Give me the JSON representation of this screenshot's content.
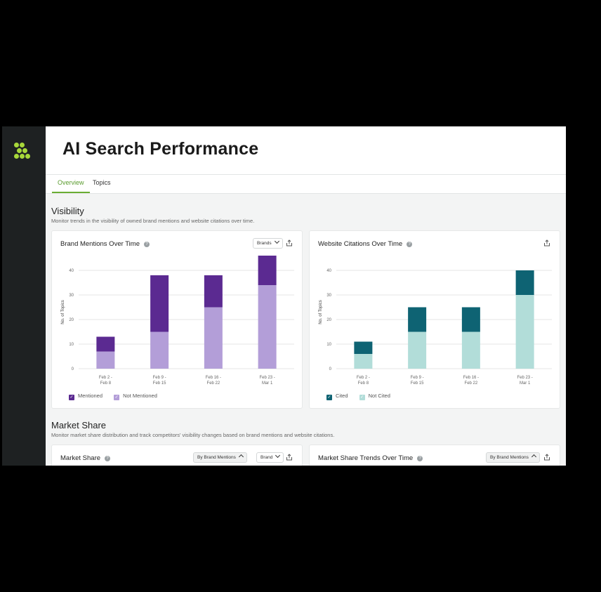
{
  "page": {
    "title": "AI Search Performance"
  },
  "tabs": [
    {
      "label": "Overview",
      "active": true
    },
    {
      "label": "Topics",
      "active": false
    }
  ],
  "visibility": {
    "title": "Visibility",
    "description": "Monitor trends in the visibility of owned brand mentions and website citations over time."
  },
  "brand_card": {
    "title": "Brand Mentions Over Time",
    "dropdown": "Brands",
    "legend": [
      "Mentioned",
      "Not Mentioned"
    ]
  },
  "citations_card": {
    "title": "Website Citations Over Time",
    "legend": [
      "Cited",
      "Not Cited"
    ]
  },
  "market_share": {
    "title": "Market Share",
    "description": "Monitor market share distribution and track competitors' visibility changes based on brand mentions and website citations."
  },
  "market_card": {
    "title": "Market Share",
    "dropdown1": "By Brand Mentions",
    "dropdown2": "Brand"
  },
  "trends_card": {
    "title": "Market Share Trends Over Time",
    "dropdown": "By Brand Mentions"
  },
  "colors": {
    "accent": "#6aad33",
    "mentioned": "#5b2a91",
    "not_mentioned": "#b39ed8",
    "cited": "#0e6373",
    "not_cited": "#b2ddd9"
  },
  "chart_data": [
    {
      "type": "bar",
      "stacked": true,
      "categories": [
        [
          "Feb 2 -",
          "Feb 8"
        ],
        [
          "Feb 9 -",
          "Feb 15"
        ],
        [
          "Feb 16 -",
          "Feb 22"
        ],
        [
          "Feb 23 -",
          "Mar 1"
        ]
      ],
      "series": [
        {
          "name": "Not Mentioned",
          "values": [
            7,
            15,
            25,
            34
          ],
          "color": "#b39ed8"
        },
        {
          "name": "Mentioned",
          "values": [
            6,
            23,
            13,
            12
          ],
          "color": "#5b2a91"
        }
      ],
      "ylabel": "No. of Topics",
      "yticks": [
        0,
        10,
        20,
        30,
        40
      ],
      "ylim": [
        0,
        46
      ],
      "grid": true
    },
    {
      "type": "bar",
      "stacked": true,
      "categories": [
        [
          "Feb 2 -",
          "Feb 8"
        ],
        [
          "Feb 9 -",
          "Feb 15"
        ],
        [
          "Feb 16 -",
          "Feb 22"
        ],
        [
          "Feb 23 -",
          "Mar 1"
        ]
      ],
      "series": [
        {
          "name": "Not Cited",
          "values": [
            6,
            15,
            15,
            30
          ],
          "color": "#b2ddd9"
        },
        {
          "name": "Cited",
          "values": [
            5,
            10,
            10,
            10
          ],
          "color": "#0e6373"
        }
      ],
      "ylabel": "No. of Topics",
      "yticks": [
        0,
        10,
        20,
        30,
        40
      ],
      "ylim": [
        0,
        46
      ],
      "grid": true
    }
  ]
}
